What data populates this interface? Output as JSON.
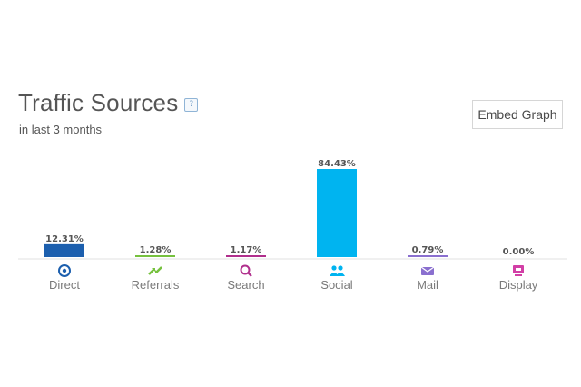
{
  "header": {
    "title": "Traffic Sources",
    "help_glyph": "?",
    "subtitle": "in last 3 months",
    "embed_label": "Embed Graph"
  },
  "chart_data": {
    "type": "bar",
    "categories": [
      "Direct",
      "Referrals",
      "Search",
      "Social",
      "Mail",
      "Display"
    ],
    "values": [
      12.31,
      1.28,
      1.17,
      84.43,
      0.79,
      0.0
    ],
    "labels": [
      "12.31%",
      "1.28%",
      "1.17%",
      "84.43%",
      "0.79%",
      "0.00%"
    ],
    "colors": [
      "#1c5fae",
      "#76c13e",
      "#b02e8c",
      "#00b4f0",
      "#8a6fcf",
      "#d23fa6"
    ],
    "icons": [
      "direct-icon",
      "referrals-icon",
      "search-icon",
      "social-icon",
      "mail-icon",
      "display-icon"
    ],
    "ylim": [
      0,
      84.43
    ],
    "grid": false
  }
}
